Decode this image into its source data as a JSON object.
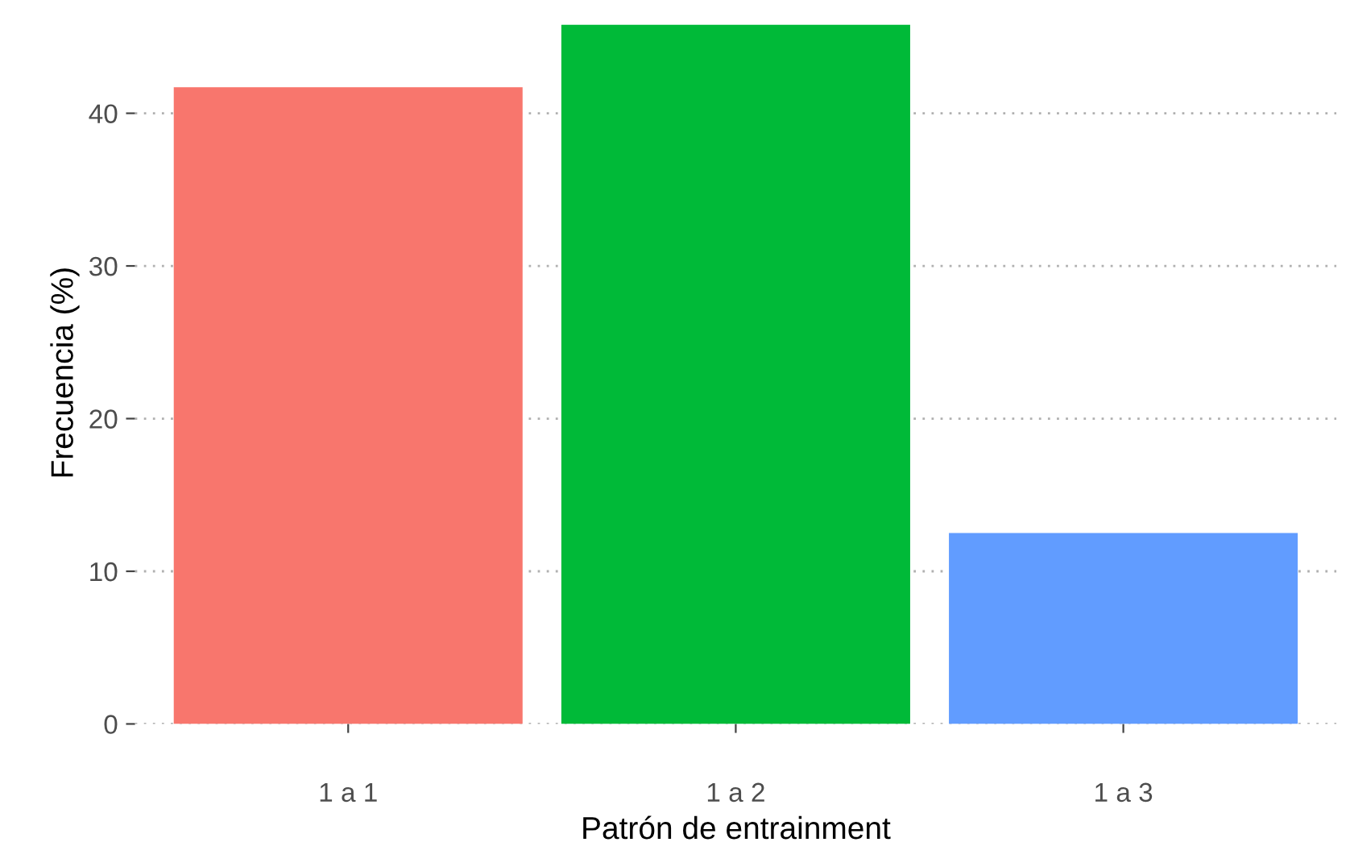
{
  "chart_data": {
    "type": "bar",
    "xlabel": "Patrón de entrainment",
    "ylabel": "Frecuencia (%)",
    "categories": [
      "1 a 1",
      "1 a 2",
      "1 a 3"
    ],
    "values": [
      41.7,
      45.8,
      12.5
    ],
    "colors": [
      "#f8766d",
      "#00ba38",
      "#619cff"
    ],
    "ylim": [
      0,
      46
    ],
    "yticks": [
      0,
      10,
      20,
      30,
      40
    ],
    "grid": "y"
  }
}
